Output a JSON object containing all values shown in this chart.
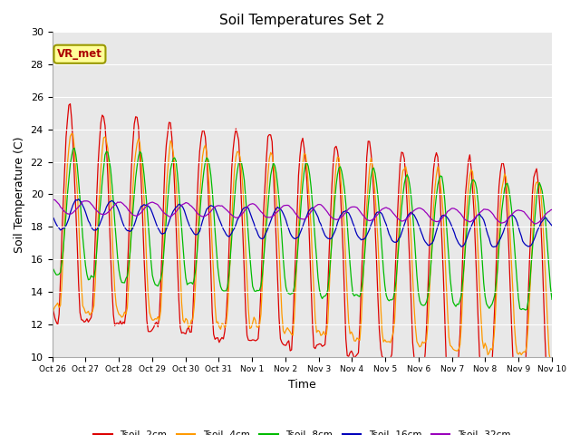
{
  "title": "Soil Temperatures Set 2",
  "xlabel": "Time",
  "ylabel": "Soil Temperature (C)",
  "ylim": [
    10,
    30
  ],
  "ytick_values": [
    10,
    12,
    14,
    16,
    18,
    20,
    22,
    24,
    26,
    28,
    30
  ],
  "series_colors": [
    "#dd0000",
    "#ff9900",
    "#00bb00",
    "#0000bb",
    "#9900bb"
  ],
  "series_labels": [
    "Tsoil -2cm",
    "Tsoil -4cm",
    "Tsoil -8cm",
    "Tsoil -16cm",
    "Tsoil -32cm"
  ],
  "annotation_text": "VR_met",
  "annotation_color": "#aa0000",
  "annotation_bg": "#ffff99",
  "annotation_edge": "#999900",
  "plot_bg_color": "#e8e8e8",
  "grid_color": "#ffffff",
  "n_days": 15,
  "seed": 42
}
